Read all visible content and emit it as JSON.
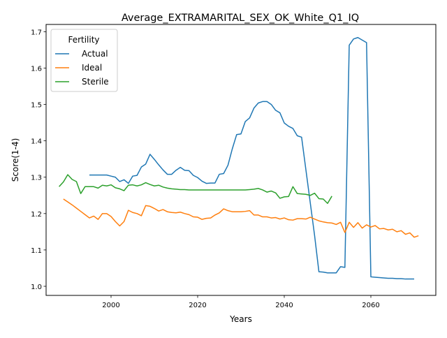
{
  "chart_data": {
    "type": "line",
    "title": "Average_EXTRAMARITAL_SEX_OK_White_Q1_IQ",
    "xlabel": "Years",
    "ylabel": "Score(1-4)",
    "xlim": [
      1985,
      2075
    ],
    "ylim": [
      0.975,
      1.72
    ],
    "xticks": [
      2000,
      2020,
      2040,
      2060
    ],
    "yticks": [
      1.0,
      1.1,
      1.2,
      1.3,
      1.4,
      1.5,
      1.6,
      1.7
    ],
    "grid": false,
    "legend": {
      "title": "Fertility",
      "placement": "upper-left"
    },
    "series": [
      {
        "name": "Actual",
        "color": "#1f77b4",
        "points": [
          [
            1995,
            1.306
          ],
          [
            1996,
            1.306
          ],
          [
            1997,
            1.306
          ],
          [
            1998,
            1.306
          ],
          [
            1999,
            1.306
          ],
          [
            2000,
            1.303
          ],
          [
            2001,
            1.3
          ],
          [
            2002,
            1.288
          ],
          [
            2003,
            1.293
          ],
          [
            2004,
            1.283
          ],
          [
            2005,
            1.303
          ],
          [
            2006,
            1.305
          ],
          [
            2007,
            1.328
          ],
          [
            2008,
            1.336
          ],
          [
            2009,
            1.363
          ],
          [
            2010,
            1.349
          ],
          [
            2011,
            1.334
          ],
          [
            2012,
            1.32
          ],
          [
            2013,
            1.308
          ],
          [
            2014,
            1.308
          ],
          [
            2015,
            1.319
          ],
          [
            2016,
            1.327
          ],
          [
            2017,
            1.319
          ],
          [
            2018,
            1.318
          ],
          [
            2019,
            1.305
          ],
          [
            2020,
            1.299
          ],
          [
            2021,
            1.289
          ],
          [
            2022,
            1.283
          ],
          [
            2023,
            1.284
          ],
          [
            2024,
            1.284
          ],
          [
            2025,
            1.308
          ],
          [
            2026,
            1.31
          ],
          [
            2027,
            1.333
          ],
          [
            2028,
            1.378
          ],
          [
            2029,
            1.417
          ],
          [
            2030,
            1.419
          ],
          [
            2031,
            1.453
          ],
          [
            2032,
            1.463
          ],
          [
            2033,
            1.49
          ],
          [
            2034,
            1.504
          ],
          [
            2035,
            1.508
          ],
          [
            2036,
            1.508
          ],
          [
            2037,
            1.5
          ],
          [
            2038,
            1.484
          ],
          [
            2039,
            1.477
          ],
          [
            2040,
            1.449
          ],
          [
            2041,
            1.44
          ],
          [
            2042,
            1.434
          ],
          [
            2043,
            1.414
          ],
          [
            2044,
            1.41
          ],
          [
            2045,
            1.32
          ],
          [
            2046,
            1.23
          ],
          [
            2047,
            1.14
          ],
          [
            2048,
            1.04
          ],
          [
            2049,
            1.039
          ],
          [
            2050,
            1.037
          ],
          [
            2051,
            1.037
          ],
          [
            2052,
            1.037
          ],
          [
            2053,
            1.054
          ],
          [
            2054,
            1.052
          ],
          [
            2055,
            1.663
          ],
          [
            2056,
            1.68
          ],
          [
            2057,
            1.684
          ],
          [
            2058,
            1.677
          ],
          [
            2059,
            1.67
          ],
          [
            2060,
            1.026
          ],
          [
            2061,
            1.025
          ],
          [
            2062,
            1.024
          ],
          [
            2063,
            1.023
          ],
          [
            2064,
            1.022
          ],
          [
            2065,
            1.022
          ],
          [
            2066,
            1.021
          ],
          [
            2067,
            1.021
          ],
          [
            2068,
            1.02
          ],
          [
            2069,
            1.02
          ],
          [
            2070,
            1.02
          ]
        ]
      },
      {
        "name": "Ideal",
        "color": "#ff7f0e",
        "points": [
          [
            1989,
            1.24
          ],
          [
            1990,
            1.232
          ],
          [
            1991,
            1.224
          ],
          [
            1992,
            1.215
          ],
          [
            1993,
            1.206
          ],
          [
            1994,
            1.197
          ],
          [
            1995,
            1.188
          ],
          [
            1996,
            1.193
          ],
          [
            1997,
            1.184
          ],
          [
            1998,
            1.2
          ],
          [
            1999,
            1.2
          ],
          [
            2000,
            1.192
          ],
          [
            2001,
            1.178
          ],
          [
            2002,
            1.166
          ],
          [
            2003,
            1.178
          ],
          [
            2004,
            1.209
          ],
          [
            2005,
            1.203
          ],
          [
            2006,
            1.2
          ],
          [
            2007,
            1.194
          ],
          [
            2008,
            1.222
          ],
          [
            2009,
            1.22
          ],
          [
            2010,
            1.214
          ],
          [
            2011,
            1.207
          ],
          [
            2012,
            1.211
          ],
          [
            2013,
            1.205
          ],
          [
            2014,
            1.203
          ],
          [
            2015,
            1.202
          ],
          [
            2016,
            1.204
          ],
          [
            2017,
            1.2
          ],
          [
            2018,
            1.197
          ],
          [
            2019,
            1.191
          ],
          [
            2020,
            1.19
          ],
          [
            2021,
            1.184
          ],
          [
            2022,
            1.187
          ],
          [
            2023,
            1.188
          ],
          [
            2024,
            1.196
          ],
          [
            2025,
            1.202
          ],
          [
            2026,
            1.213
          ],
          [
            2027,
            1.208
          ],
          [
            2028,
            1.205
          ],
          [
            2029,
            1.205
          ],
          [
            2030,
            1.205
          ],
          [
            2031,
            1.206
          ],
          [
            2032,
            1.208
          ],
          [
            2033,
            1.196
          ],
          [
            2034,
            1.196
          ],
          [
            2035,
            1.191
          ],
          [
            2036,
            1.191
          ],
          [
            2037,
            1.188
          ],
          [
            2038,
            1.189
          ],
          [
            2039,
            1.185
          ],
          [
            2040,
            1.188
          ],
          [
            2041,
            1.183
          ],
          [
            2042,
            1.182
          ],
          [
            2043,
            1.186
          ],
          [
            2044,
            1.186
          ],
          [
            2045,
            1.185
          ],
          [
            2046,
            1.19
          ],
          [
            2047,
            1.185
          ],
          [
            2048,
            1.18
          ],
          [
            2049,
            1.177
          ],
          [
            2050,
            1.175
          ],
          [
            2051,
            1.174
          ],
          [
            2052,
            1.17
          ],
          [
            2053,
            1.176
          ],
          [
            2054,
            1.148
          ],
          [
            2055,
            1.176
          ],
          [
            2056,
            1.162
          ],
          [
            2057,
            1.175
          ],
          [
            2058,
            1.16
          ],
          [
            2059,
            1.169
          ],
          [
            2060,
            1.163
          ],
          [
            2061,
            1.167
          ],
          [
            2062,
            1.158
          ],
          [
            2063,
            1.159
          ],
          [
            2064,
            1.155
          ],
          [
            2065,
            1.157
          ],
          [
            2066,
            1.15
          ],
          [
            2067,
            1.153
          ],
          [
            2068,
            1.143
          ],
          [
            2069,
            1.147
          ],
          [
            2070,
            1.135
          ],
          [
            2071,
            1.139
          ]
        ]
      },
      {
        "name": "Sterile",
        "color": "#2ca02c",
        "points": [
          [
            1988,
            1.274
          ],
          [
            1989,
            1.287
          ],
          [
            1990,
            1.307
          ],
          [
            1991,
            1.294
          ],
          [
            1992,
            1.288
          ],
          [
            1993,
            1.255
          ],
          [
            1994,
            1.274
          ],
          [
            1995,
            1.274
          ],
          [
            1996,
            1.274
          ],
          [
            1997,
            1.27
          ],
          [
            1998,
            1.278
          ],
          [
            1999,
            1.276
          ],
          [
            2000,
            1.279
          ],
          [
            2001,
            1.271
          ],
          [
            2002,
            1.268
          ],
          [
            2003,
            1.263
          ],
          [
            2004,
            1.278
          ],
          [
            2005,
            1.279
          ],
          [
            2006,
            1.276
          ],
          [
            2007,
            1.279
          ],
          [
            2008,
            1.285
          ],
          [
            2009,
            1.28
          ],
          [
            2010,
            1.276
          ],
          [
            2011,
            1.278
          ],
          [
            2012,
            1.273
          ],
          [
            2013,
            1.27
          ],
          [
            2014,
            1.268
          ],
          [
            2015,
            1.267
          ],
          [
            2016,
            1.266
          ],
          [
            2017,
            1.266
          ],
          [
            2018,
            1.265
          ],
          [
            2019,
            1.265
          ],
          [
            2020,
            1.265
          ],
          [
            2021,
            1.265
          ],
          [
            2022,
            1.265
          ],
          [
            2023,
            1.265
          ],
          [
            2024,
            1.265
          ],
          [
            2025,
            1.265
          ],
          [
            2026,
            1.265
          ],
          [
            2027,
            1.265
          ],
          [
            2028,
            1.265
          ],
          [
            2029,
            1.265
          ],
          [
            2030,
            1.265
          ],
          [
            2031,
            1.265
          ],
          [
            2032,
            1.266
          ],
          [
            2033,
            1.267
          ],
          [
            2034,
            1.269
          ],
          [
            2035,
            1.265
          ],
          [
            2036,
            1.259
          ],
          [
            2037,
            1.262
          ],
          [
            2038,
            1.257
          ],
          [
            2039,
            1.242
          ],
          [
            2040,
            1.246
          ],
          [
            2041,
            1.247
          ],
          [
            2042,
            1.274
          ],
          [
            2043,
            1.255
          ],
          [
            2044,
            1.254
          ],
          [
            2045,
            1.253
          ],
          [
            2046,
            1.25
          ],
          [
            2047,
            1.256
          ],
          [
            2048,
            1.241
          ],
          [
            2049,
            1.24
          ],
          [
            2050,
            1.228
          ],
          [
            2051,
            1.248
          ]
        ]
      }
    ]
  }
}
